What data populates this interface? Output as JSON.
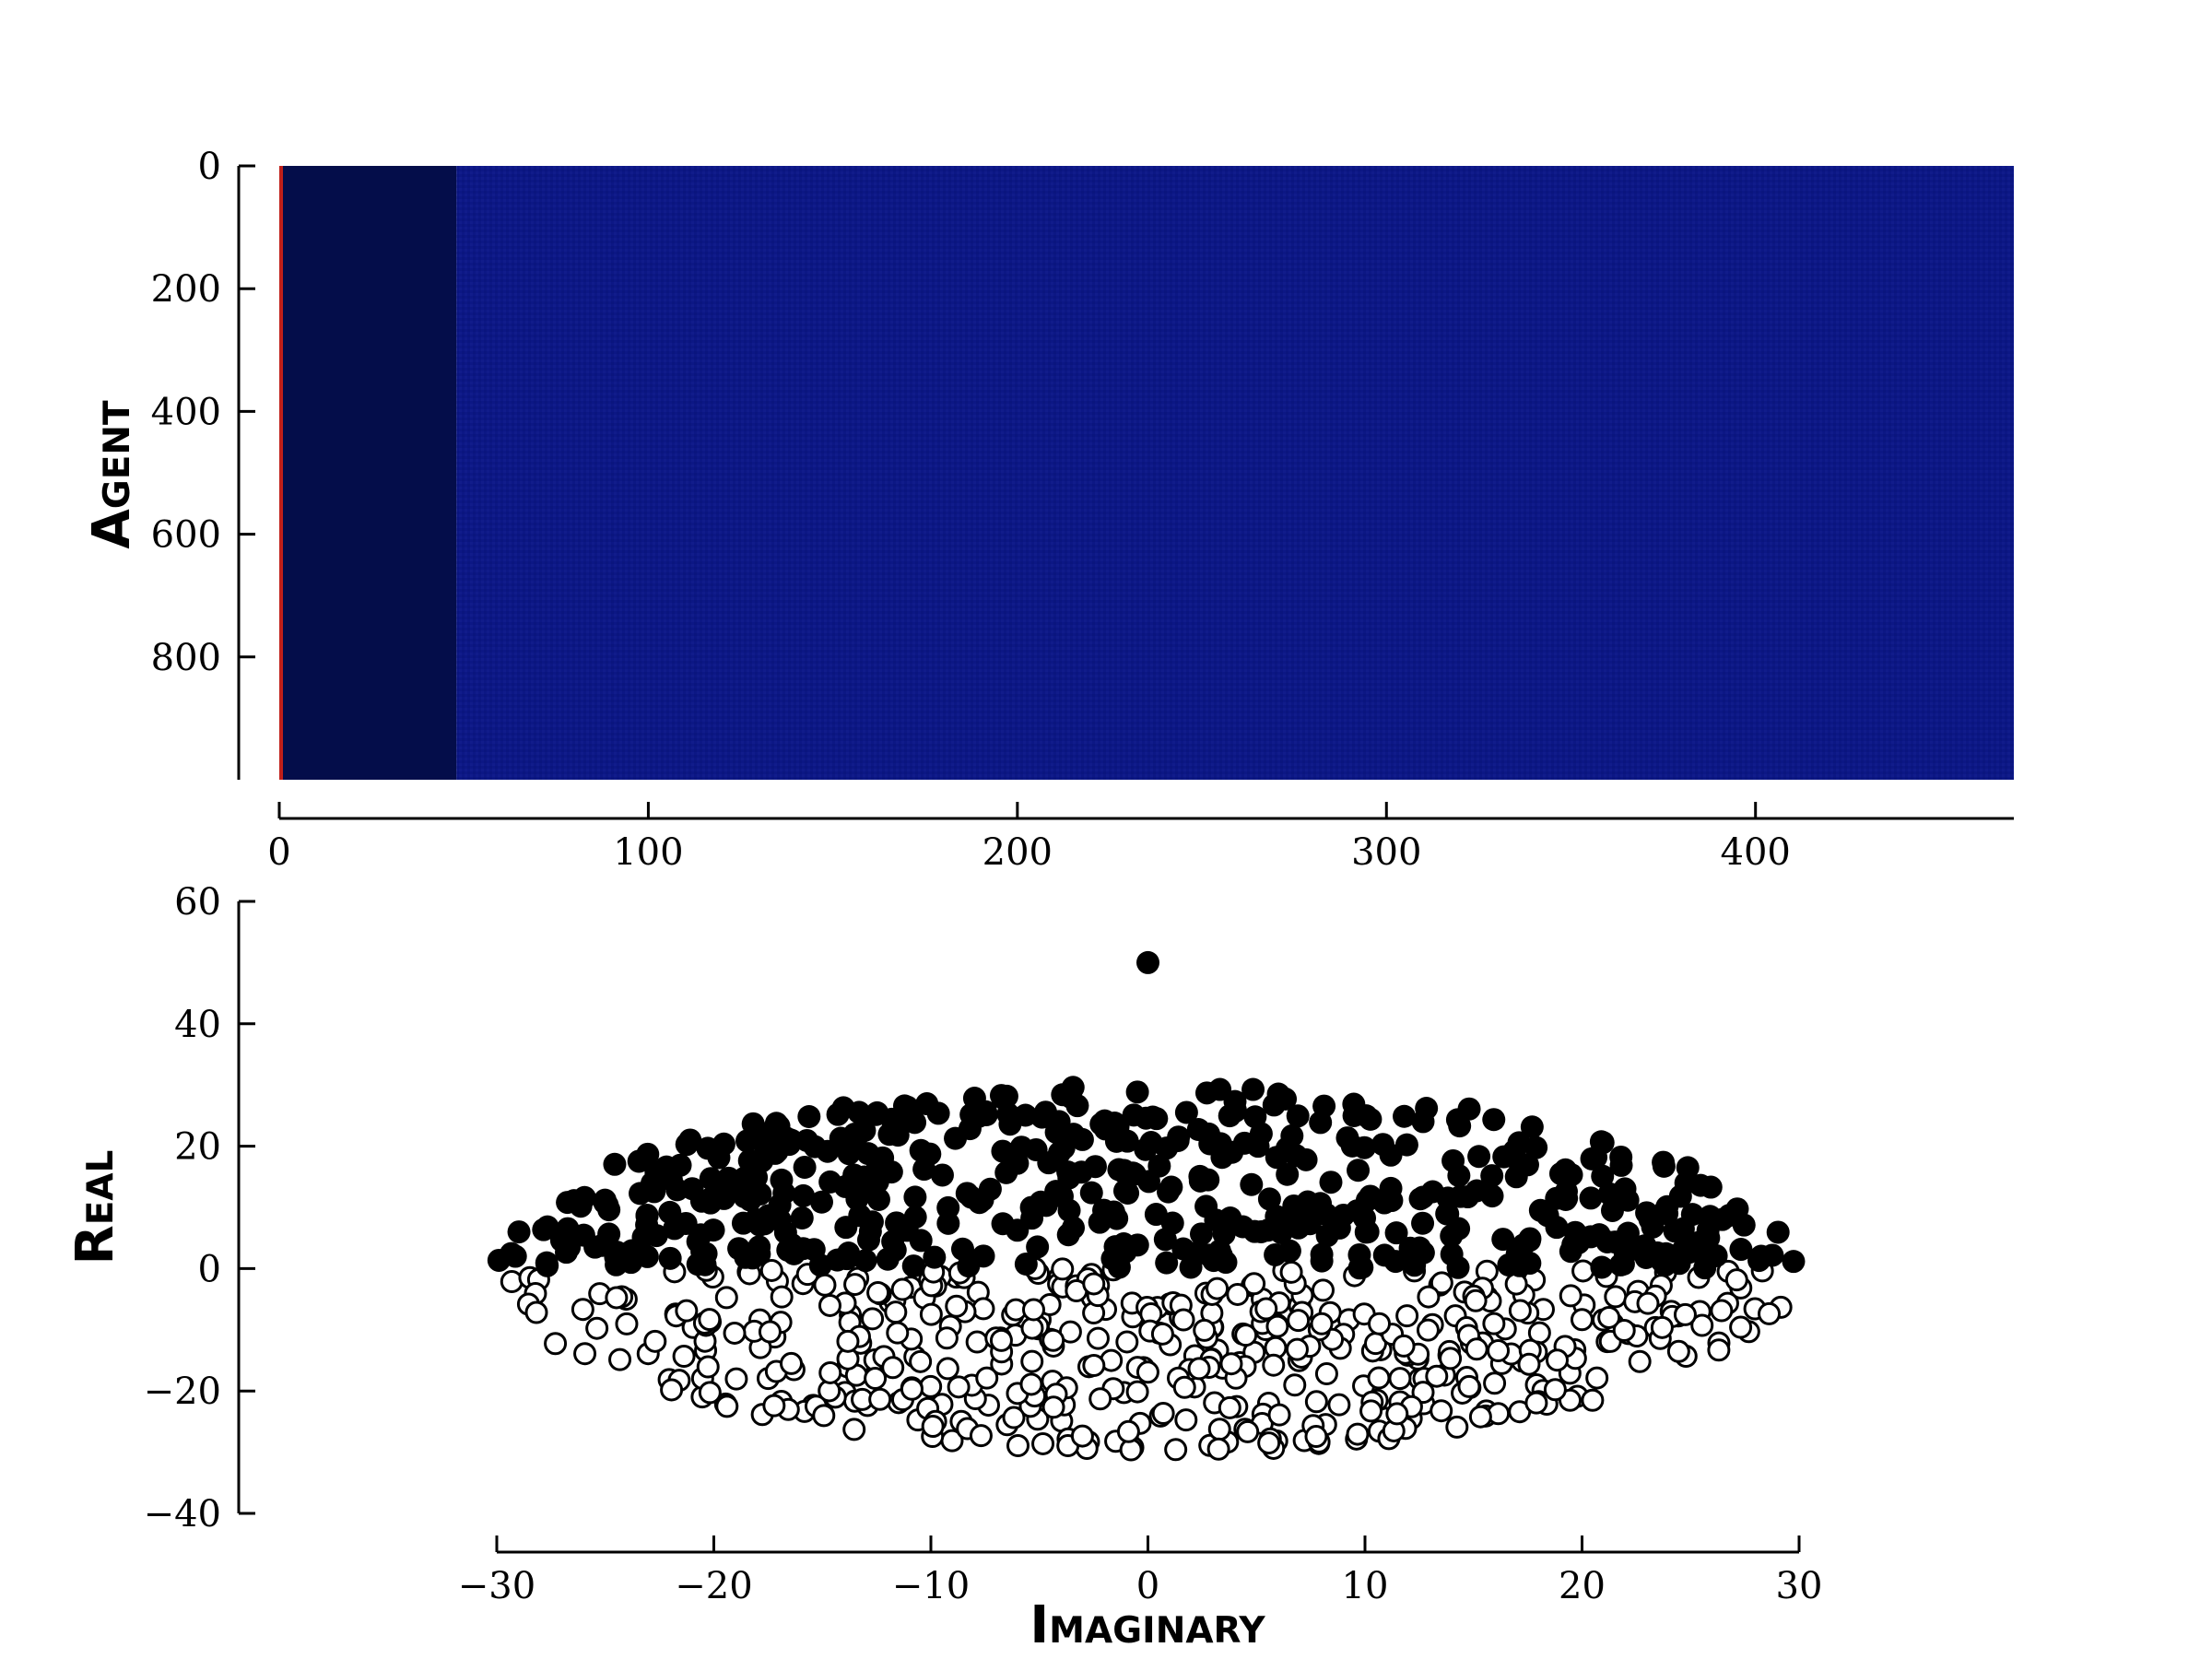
{
  "chart_data": [
    {
      "type": "heatmap",
      "ylabel": "Agent",
      "xlabel": "",
      "xlim": [
        0,
        470
      ],
      "ylim": [
        1000,
        0
      ],
      "x_ticks": [
        0,
        100,
        200,
        300,
        400
      ],
      "y_ticks": [
        0,
        200,
        400,
        600,
        800
      ],
      "colormap": "jet",
      "columns": 470,
      "rows": 1000,
      "bands": [
        {
          "x_range": [
            0,
            1
          ],
          "value": 0.85,
          "note": "red edge column"
        },
        {
          "x_range": [
            1,
            48
          ],
          "value": 0.04
        },
        {
          "x_range": [
            48,
            470
          ],
          "value": 0.1
        }
      ],
      "colors": {
        "edge": "#c0201a",
        "dark_band": "#040d4a",
        "main": "#0c1785"
      }
    },
    {
      "type": "scatter",
      "xlabel": "Imaginary",
      "ylabel": "Real",
      "xlim": [
        -30,
        30
      ],
      "ylim": [
        -40,
        60
      ],
      "x_ticks": [
        -30,
        -20,
        -10,
        0,
        10,
        20,
        30
      ],
      "y_ticks": [
        -40,
        -20,
        0,
        20,
        40,
        60
      ],
      "outlier": {
        "x": 0,
        "y": 50
      },
      "series": [
        {
          "filled": true,
          "color": "#000000",
          "region": "real >= 0, inside half-ellipse a=30, b=30 (Re <= 30*sqrt(1-(Im/30)^2))",
          "count": 500
        },
        {
          "filled": false,
          "color": "#ffffff",
          "edge": "#000000",
          "region": "real < 0, inside half-ellipse a=30, b=30",
          "count": 500
        }
      ]
    }
  ]
}
